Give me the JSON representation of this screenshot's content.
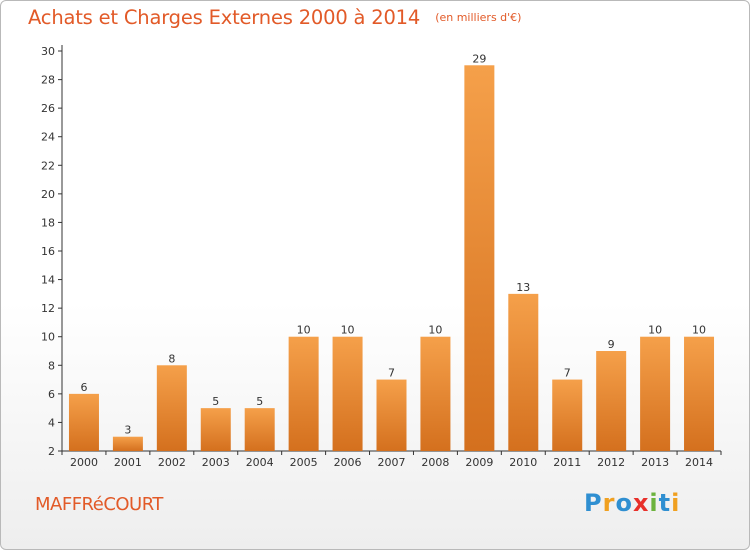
{
  "title": "Achats et Charges Externes 2000 à 2014",
  "subtitle": "(en milliers d'€)",
  "commune": "MAFFRéCOURT",
  "logo_text": "Proxiti",
  "colors": {
    "bar_light": "#f5a04a",
    "bar_dark": "#d4701e",
    "title": "#e25a28",
    "axis": "#333333"
  },
  "chart_data": {
    "type": "bar",
    "title": "Achats et Charges Externes 2000 à 2014",
    "subtitle": "(en milliers d'€)",
    "categories": [
      "2000",
      "2001",
      "2002",
      "2003",
      "2004",
      "2005",
      "2006",
      "2007",
      "2008",
      "2009",
      "2010",
      "2011",
      "2012",
      "2013",
      "2014"
    ],
    "values": [
      6,
      3,
      8,
      5,
      5,
      10,
      10,
      7,
      10,
      29,
      13,
      7,
      9,
      10,
      10
    ],
    "value_labels": [
      "6",
      "3",
      "8",
      "5",
      "5",
      "10",
      "10",
      "7",
      "10",
      "29",
      "13",
      "7",
      "9",
      "10",
      "10"
    ],
    "y_ticks": [
      "2",
      "4",
      "6",
      "8",
      "10",
      "12",
      "14",
      "16",
      "18",
      "20",
      "22",
      "24",
      "26",
      "28",
      "30"
    ],
    "ylim": [
      2,
      30
    ],
    "xlabel": "",
    "ylabel": "",
    "grid": false,
    "legend": "none"
  }
}
